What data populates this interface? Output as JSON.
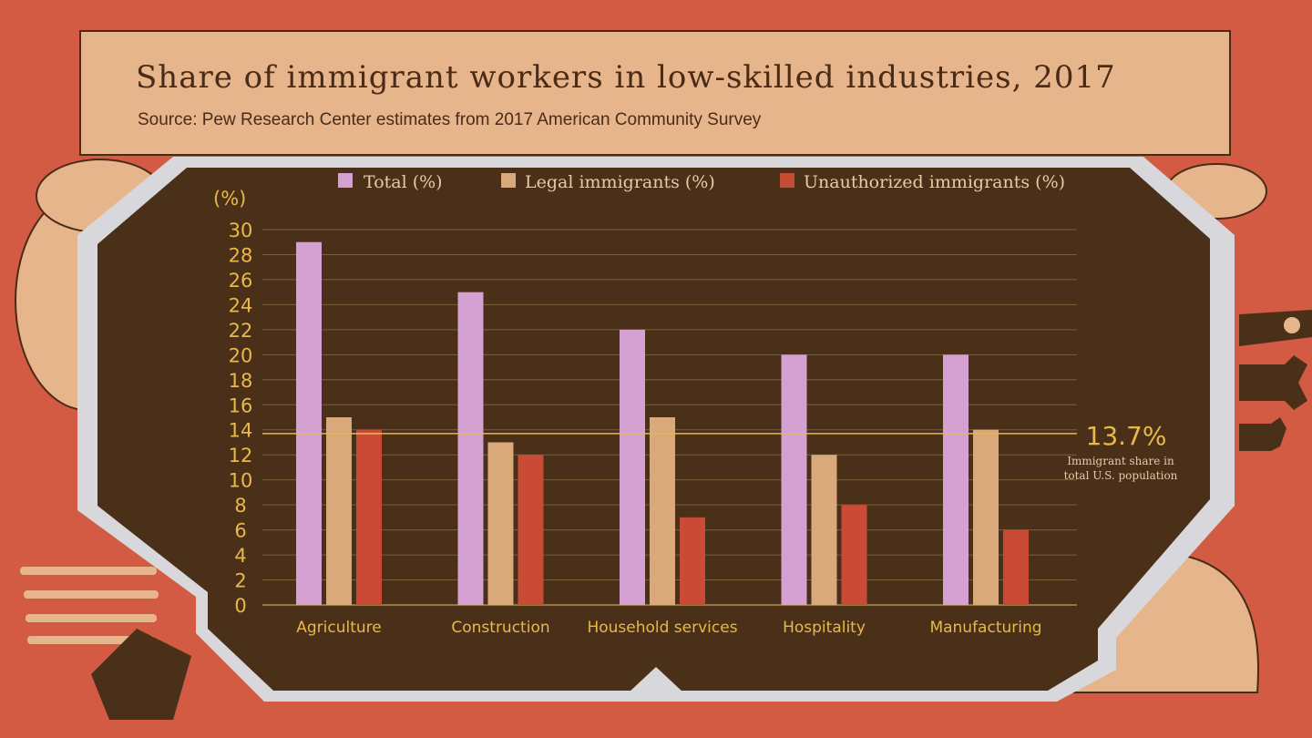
{
  "header": {
    "title": "Share of immigrant workers in low-skilled industries, 2017",
    "subtitle": "Source: Pew Research Center estimates from 2017 American Community Survey"
  },
  "colors": {
    "background": "#d35a43",
    "panel": "#4a3018",
    "frame": "#d8d8dc",
    "total": "#d5a1d2",
    "legal": "#d9a97c",
    "unauthorized": "#c94b36",
    "accent": "#e8b948"
  },
  "icons": [
    "farmer-hat-icon",
    "pitchfork-icon",
    "shovel-icon",
    "hard-hat-icon",
    "pliers-icon",
    "wrench-icon"
  ],
  "chart_data": {
    "type": "bar",
    "title": "Share of immigrant workers in low-skilled industries, 2017",
    "subtitle": "Source: Pew Research Center estimates from 2017 American Community Survey",
    "ylabel": "(%)",
    "xlabel": "",
    "ylim": [
      0,
      30
    ],
    "yticks": [
      0,
      2,
      4,
      6,
      8,
      10,
      12,
      14,
      16,
      18,
      20,
      22,
      24,
      26,
      28,
      30
    ],
    "grid": true,
    "legend_position": "top",
    "categories": [
      "Agriculture",
      "Construction",
      "Household services",
      "Hospitality",
      "Manufacturing"
    ],
    "series": [
      {
        "name": "Total (%)",
        "color": "#d5a1d2",
        "values": [
          29,
          25,
          22,
          20,
          20
        ]
      },
      {
        "name": "Legal immigrants (%)",
        "color": "#d9a97c",
        "values": [
          15,
          13,
          15,
          12,
          14
        ]
      },
      {
        "name": "Unauthorized immigrants (%)",
        "color": "#c94b36",
        "values": [
          14,
          12,
          7,
          8,
          6
        ]
      }
    ],
    "reference_line": {
      "value": 13.7,
      "label": "13.7%",
      "note_lines": [
        "Immigrant share in",
        "total U.S. population"
      ]
    }
  }
}
